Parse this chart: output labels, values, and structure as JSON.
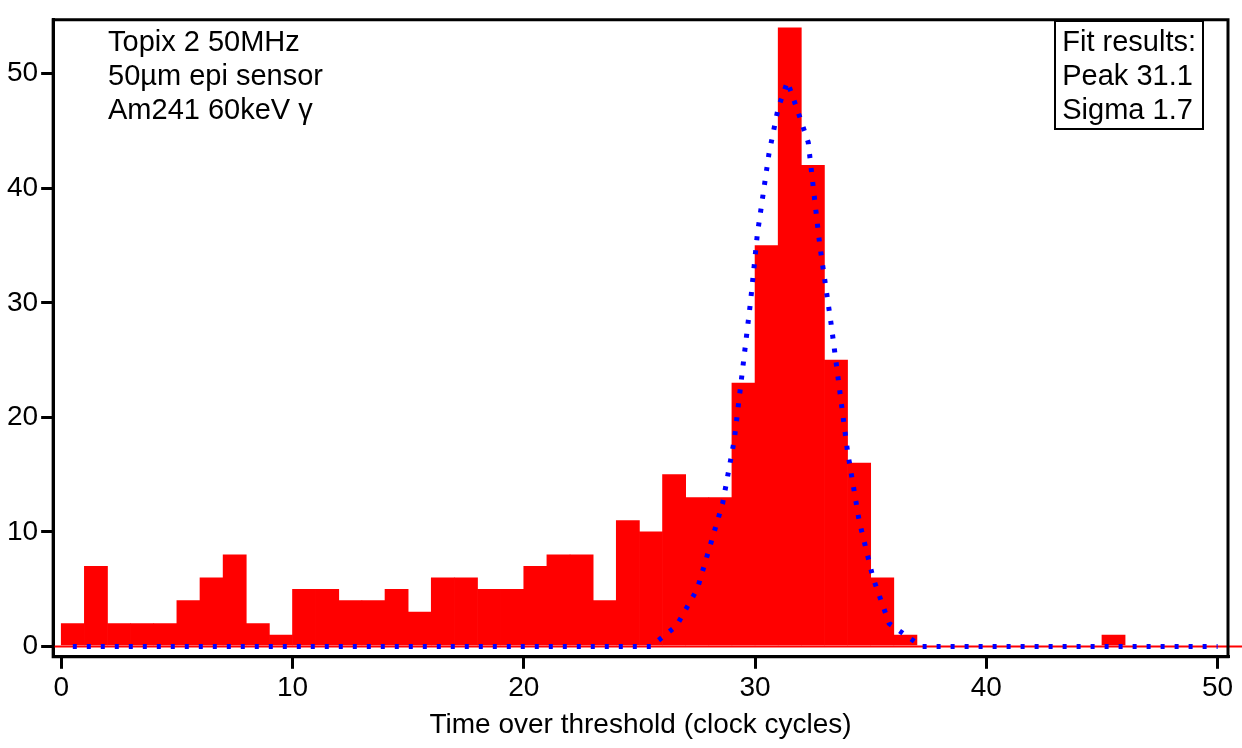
{
  "chart_data": {
    "type": "histogram",
    "xlabel": "Time over threshold (clock cycles)",
    "bins": [
      0,
      1,
      2,
      3,
      4,
      5,
      6,
      7,
      8,
      9,
      10,
      11,
      12,
      13,
      14,
      15,
      16,
      17,
      18,
      19,
      20,
      21,
      22,
      23,
      24,
      25,
      26,
      27,
      28,
      29,
      30,
      31,
      32,
      33,
      34,
      35,
      36,
      37,
      38,
      39,
      40,
      41,
      42,
      43,
      44,
      45,
      46,
      47,
      48,
      49,
      50
    ],
    "values": [
      2,
      7,
      2,
      2,
      2,
      4,
      6,
      8,
      2,
      1,
      5,
      5,
      4,
      4,
      5,
      3,
      6,
      6,
      5,
      5,
      7,
      8,
      8,
      4,
      11,
      10,
      15,
      13,
      13,
      23,
      35,
      54,
      42,
      25,
      16,
      6,
      1,
      0,
      0,
      0,
      0,
      0,
      0,
      0,
      0,
      1,
      0,
      0,
      0,
      0
    ],
    "color": "#ff0000",
    "series": [
      {
        "type": "line",
        "color": "#0000ff",
        "line_style": "dotted",
        "marker": "none",
        "x": [
          0.5,
          25.5,
          26.6,
          27.5,
          28.6,
          29.1,
          29.8,
          30.1,
          30.6,
          31.0,
          31.4,
          31.8,
          32.3,
          32.8,
          33.3,
          34.0,
          34.5,
          35.1,
          35.8,
          37.2,
          50
        ],
        "values": [
          0,
          0,
          1.8,
          5,
          12.5,
          18,
          30,
          36,
          43,
          47,
          49.3,
          47,
          44,
          35,
          28,
          17,
          11,
          6,
          2,
          0,
          0
        ]
      }
    ],
    "ref_lines": [
      {
        "axis": "y",
        "value": 0,
        "color": "#ff0000"
      }
    ],
    "xlim": [
      -0.35,
      50.45
    ],
    "xticks": [
      0,
      10,
      20,
      30,
      40,
      50
    ],
    "ylim": [
      -0.9,
      54.7
    ],
    "yticks": [
      0,
      10,
      20,
      30,
      40,
      50
    ],
    "grid": false,
    "legend": false,
    "annotations": [
      "Topix 2 50MHz",
      "50µm epi sensor",
      "Am241 60keV γ",
      "Fit results:\nPeak 31.1\nSigma 1.7"
    ]
  }
}
